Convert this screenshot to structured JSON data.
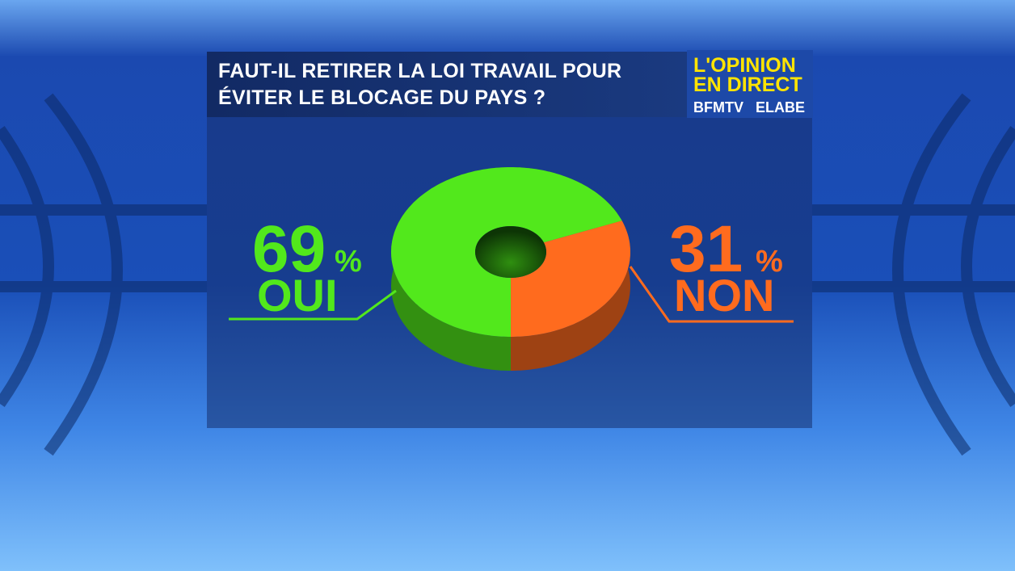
{
  "chart_data": {
    "type": "pie",
    "title": "FAUT-IL RETIRER LA LOI TRAVAIL POUR ÉVITER LE BLOCAGE DU PAYS ?",
    "categories": [
      "OUI",
      "NON"
    ],
    "values": [
      69,
      31
    ],
    "value_suffix": "%",
    "colors": [
      "#52e81c",
      "#ff6b1e"
    ]
  },
  "logo": {
    "line1": "L'OPINION",
    "line2": "EN DIRECT",
    "brand": "BFMTV",
    "partner": "ELABE"
  }
}
